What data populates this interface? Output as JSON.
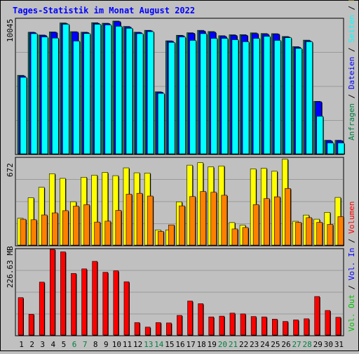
{
  "title": "Tages-Statistik im Monat August 2022",
  "colors": {
    "background": "#c0c0c0",
    "title": "#0000ff",
    "gridline": "#9a9a9a",
    "anfragen": "#008040",
    "dateien": "#0000ff",
    "seiten": "#00ffff",
    "besuche": "#ffff00",
    "rechner": "#ff8000",
    "vol_out": "#00c000",
    "vol_in": "#0000ff",
    "volumen": "#ff0000",
    "weekend_label": "#008040",
    "weekday_label": "#000000"
  },
  "chart_data": [
    {
      "type": "bar",
      "name": "hits",
      "ymax_label": "10045",
      "ylim": [
        0,
        10045
      ],
      "grid": true,
      "legend_position": "right",
      "series": [
        {
          "name": "Anfragen",
          "values": [
            5850,
            9060,
            8850,
            9080,
            9750,
            9100,
            9060,
            9770,
            9730,
            9890,
            9490,
            9060,
            9200,
            4620,
            8420,
            8830,
            9020,
            9200,
            9110,
            8800,
            8870,
            8880,
            9010,
            8960,
            8950,
            8740,
            7990,
            8470,
            3910,
            1010,
            1010
          ]
        },
        {
          "name": "Dateien",
          "values": [
            5800,
            9030,
            8820,
            9050,
            9700,
            9070,
            9030,
            9720,
            9700,
            9850,
            9440,
            9030,
            9170,
            4590,
            8390,
            8800,
            8980,
            9150,
            9060,
            8750,
            8820,
            8830,
            8960,
            8910,
            8920,
            8700,
            7940,
            8420,
            3880,
            970,
            970
          ]
        },
        {
          "name": "Seiten",
          "values": [
            5700,
            8950,
            8700,
            8620,
            9650,
            8400,
            8960,
            9650,
            9600,
            9500,
            9350,
            8950,
            9100,
            4500,
            8300,
            8700,
            8450,
            8950,
            8600,
            8600,
            8500,
            8350,
            8600,
            8750,
            8450,
            8650,
            7850,
            8350,
            2800,
            810,
            810
          ]
        }
      ],
      "categories": [
        "1",
        "2",
        "3",
        "4",
        "5",
        "6",
        "7",
        "8",
        "9",
        "10",
        "11",
        "12",
        "13",
        "14",
        "15",
        "16",
        "17",
        "18",
        "19",
        "20",
        "21",
        "22",
        "23",
        "24",
        "25",
        "26",
        "27",
        "28",
        "29",
        "30",
        "31"
      ]
    },
    {
      "type": "bar",
      "name": "visits",
      "ymax_label": "672",
      "ylim": [
        0,
        672
      ],
      "grid": true,
      "legend_position": "right",
      "series": [
        {
          "name": "Besuche",
          "values": [
            207,
            366,
            446,
            551,
            515,
            335,
            524,
            540,
            561,
            536,
            596,
            558,
            556,
            117,
            117,
            334,
            617,
            636,
            604,
            611,
            174,
            154,
            588,
            593,
            570,
            663,
            184,
            232,
            200,
            253,
            368
          ]
        },
        {
          "name": "Rechner",
          "values": [
            200,
            196,
            233,
            249,
            266,
            301,
            312,
            178,
            185,
            268,
            393,
            400,
            379,
            106,
            156,
            303,
            375,
            414,
            408,
            385,
            125,
            136,
            313,
            359,
            373,
            437,
            176,
            212,
            176,
            160,
            220
          ]
        }
      ]
    },
    {
      "type": "bar",
      "name": "volume",
      "ymax_label": "226.63 MB",
      "unit": "MB",
      "ylim": [
        0,
        226.63
      ],
      "grid": true,
      "legend_position": "right",
      "series": [
        {
          "name": "Volumen",
          "values": [
            99,
            55,
            140,
            229,
            220,
            163,
            175,
            195,
            166,
            170,
            141,
            33,
            21,
            33,
            32,
            52,
            90,
            83,
            48,
            50,
            58,
            56,
            49,
            48,
            42,
            36,
            40,
            43,
            102,
            65,
            47
          ]
        }
      ]
    }
  ],
  "legend_right_1": [
    {
      "text": "Anfragen",
      "color": "#008040"
    },
    {
      "text": " / ",
      "color": "#000000"
    },
    {
      "text": "Dateien",
      "color": "#0000ff"
    },
    {
      "text": " / ",
      "color": "#000000"
    },
    {
      "text": "Seiten",
      "color": "#00ffff"
    },
    {
      "text": " / ",
      "color": "#000000"
    },
    {
      "text": "Besuche",
      "color": "#ffff00"
    },
    {
      "text": " / ",
      "color": "#000000"
    },
    {
      "text": "Rechner",
      "color": "#ff8000"
    }
  ],
  "legend_right_2": [
    {
      "text": "Vol. Out",
      "color": "#00c000"
    },
    {
      "text": " / ",
      "color": "#000000"
    },
    {
      "text": "Vol. In",
      "color": "#0000ff"
    },
    {
      "text": " / ",
      "color": "#000000"
    },
    {
      "text": "Volumen",
      "color": "#ff0000"
    }
  ],
  "x_labels": [
    {
      "text": "1",
      "weekend": false
    },
    {
      "text": "2",
      "weekend": false
    },
    {
      "text": "3",
      "weekend": false
    },
    {
      "text": "4",
      "weekend": false
    },
    {
      "text": "5",
      "weekend": false
    },
    {
      "text": "6",
      "weekend": true
    },
    {
      "text": "7",
      "weekend": true
    },
    {
      "text": "8",
      "weekend": false
    },
    {
      "text": "9",
      "weekend": false
    },
    {
      "text": "10",
      "weekend": false
    },
    {
      "text": "11",
      "weekend": false
    },
    {
      "text": "12",
      "weekend": false
    },
    {
      "text": "13",
      "weekend": true
    },
    {
      "text": "14",
      "weekend": true
    },
    {
      "text": "15",
      "weekend": false
    },
    {
      "text": "16",
      "weekend": false
    },
    {
      "text": "17",
      "weekend": false
    },
    {
      "text": "18",
      "weekend": false
    },
    {
      "text": "19",
      "weekend": false
    },
    {
      "text": "20",
      "weekend": true
    },
    {
      "text": "21",
      "weekend": true
    },
    {
      "text": "22",
      "weekend": false
    },
    {
      "text": "23",
      "weekend": false
    },
    {
      "text": "24",
      "weekend": false
    },
    {
      "text": "25",
      "weekend": false
    },
    {
      "text": "26",
      "weekend": false
    },
    {
      "text": "27",
      "weekend": true
    },
    {
      "text": "28",
      "weekend": true
    },
    {
      "text": "29",
      "weekend": false
    },
    {
      "text": "30",
      "weekend": false
    },
    {
      "text": "31",
      "weekend": false
    }
  ]
}
